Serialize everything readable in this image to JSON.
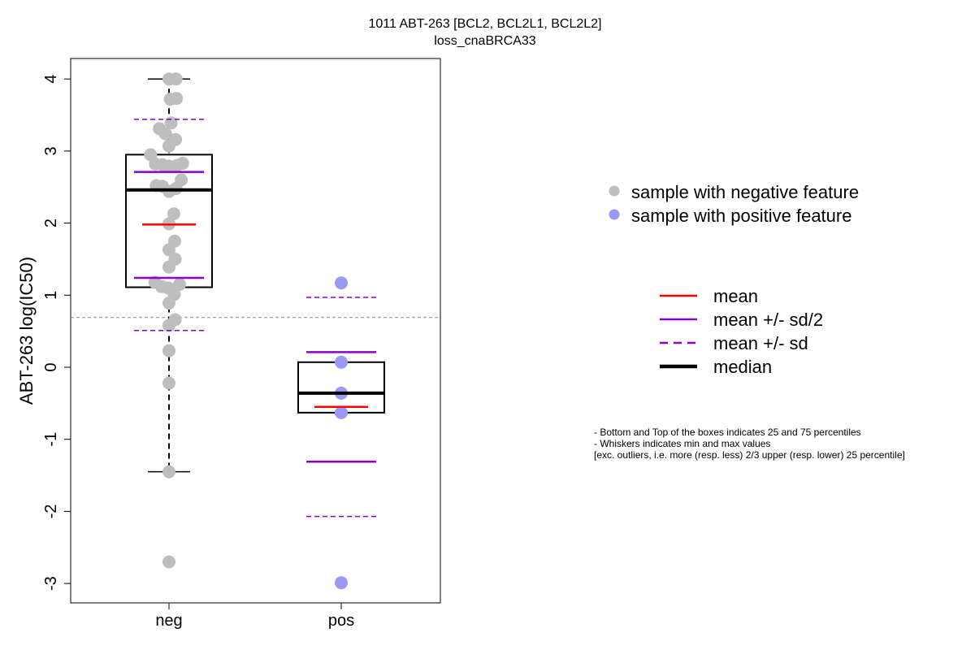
{
  "chart_data": {
    "type": "box",
    "title": "1011 ABT-263 [BCL2, BCL2L1, BCL2L2]",
    "subtitle": "loss_cnaBRCA33",
    "xlabel": "",
    "ylabel": "ABT-263 log(IC50)",
    "ylim": [
      -3.25,
      4.3
    ],
    "yticks": [
      -3,
      -2,
      -1,
      0,
      1,
      2,
      3,
      4
    ],
    "threshold": 0.69,
    "categories": [
      "neg",
      "pos"
    ],
    "groups": [
      {
        "category": "neg",
        "color": "#bebebe",
        "stats": {
          "q1": 1.11,
          "median": 2.46,
          "q3": 2.95,
          "whisker_low": -1.45,
          "whisker_high": 4.0,
          "mean": 1.98,
          "mean_minus_half_sd": 1.24,
          "mean_plus_half_sd": 2.71,
          "mean_minus_sd": 0.51,
          "mean_plus_sd": 3.44
        },
        "points": [
          [
            0,
            4.0
          ],
          [
            0.16,
            4.0
          ],
          [
            0.03,
            3.72
          ],
          [
            0.17,
            3.73
          ],
          [
            0.05,
            3.39
          ],
          [
            -0.22,
            3.31
          ],
          [
            -0.08,
            3.24
          ],
          [
            0.15,
            3.16
          ],
          [
            0.0,
            3.07
          ],
          [
            -0.42,
            2.95
          ],
          [
            -0.31,
            2.82
          ],
          [
            -0.15,
            2.81
          ],
          [
            0.0,
            2.79
          ],
          [
            0.18,
            2.8
          ],
          [
            0.31,
            2.83
          ],
          [
            -0.29,
            2.52
          ],
          [
            -0.15,
            2.51
          ],
          [
            0.0,
            2.44
          ],
          [
            0.16,
            2.48
          ],
          [
            0.28,
            2.6
          ],
          [
            0.11,
            2.13
          ],
          [
            0.0,
            1.99
          ],
          [
            0.13,
            1.75
          ],
          [
            0.0,
            1.63
          ],
          [
            0.14,
            1.5
          ],
          [
            0.0,
            1.39
          ],
          [
            -0.32,
            1.18
          ],
          [
            -0.17,
            1.12
          ],
          [
            -0.02,
            1.1
          ],
          [
            0.12,
            1.01
          ],
          [
            0.24,
            1.15
          ],
          [
            0.0,
            0.89
          ],
          [
            0.14,
            0.66
          ],
          [
            0.0,
            0.58
          ],
          [
            0.0,
            0.23
          ],
          [
            0.0,
            -0.22
          ],
          [
            0.0,
            -1.45
          ],
          [
            0.0,
            -2.7
          ]
        ]
      },
      {
        "category": "pos",
        "color": "#9a9af5",
        "stats": {
          "q1": -0.63,
          "median": -0.36,
          "q3": 0.07,
          "whisker_low": -0.63,
          "whisker_high": 0.07,
          "mean": -0.55,
          "mean_minus_half_sd": -1.31,
          "mean_plus_half_sd": 0.21,
          "mean_minus_sd": -2.07,
          "mean_plus_sd": 0.97
        },
        "points": [
          [
            0,
            1.17
          ],
          [
            0,
            0.07
          ],
          [
            0,
            -0.36
          ],
          [
            0,
            -0.63
          ],
          [
            0,
            -2.99
          ]
        ]
      }
    ],
    "legend_points": [
      {
        "label": "sample with negative feature",
        "color": "#bebebe"
      },
      {
        "label": "sample with positive feature",
        "color": "#9a9af5"
      }
    ],
    "legend_lines": [
      {
        "label": "mean",
        "color": "#ff0000",
        "style": "solid"
      },
      {
        "label": "mean +/- sd/2",
        "color": "#8b00cc",
        "style": "solid"
      },
      {
        "label": "mean +/- sd",
        "color": "#8b00cc",
        "style": "dashed"
      },
      {
        "label": "median",
        "color": "#000000",
        "style": "bold"
      }
    ],
    "notes": [
      "- Bottom and Top of the boxes indicates 25 and 75 percentiles",
      "- Whiskers indicates min and max values",
      "[exc. outliers, i.e. more (resp. less) 2/3 upper (resp. lower) 25 percentile]"
    ]
  }
}
